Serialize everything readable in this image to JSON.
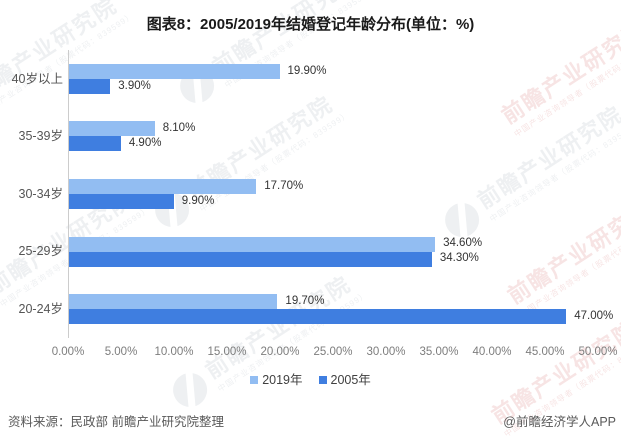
{
  "title": "图表8：2005/2019年结婚登记年龄分布(单位：%)",
  "chart_data": {
    "type": "bar",
    "orientation": "horizontal",
    "title": "图表8：2005/2019年结婚登记年龄分布(单位：%)",
    "unit": "%",
    "categories": [
      "40岁以上",
      "35-39岁",
      "30-34岁",
      "25-29岁",
      "20-24岁"
    ],
    "series": [
      {
        "name": "2019年",
        "color": "#92BDF2",
        "values": [
          19.9,
          8.1,
          17.7,
          34.6,
          19.7
        ],
        "labels": [
          "19.90%",
          "8.10%",
          "17.70%",
          "34.60%",
          "19.70%"
        ]
      },
      {
        "name": "2005年",
        "color": "#3F7EE0",
        "values": [
          3.9,
          4.9,
          9.9,
          34.3,
          47.0
        ],
        "labels": [
          "3.90%",
          "4.90%",
          "9.90%",
          "34.30%",
          "47.00%"
        ]
      }
    ],
    "xlim": [
      0,
      50
    ],
    "x_ticks": [
      "0.00%",
      "5.00%",
      "10.00%",
      "15.00%",
      "20.00%",
      "25.00%",
      "30.00%",
      "35.00%",
      "40.00%",
      "45.00%",
      "50.00%"
    ],
    "xlabel": "",
    "ylabel": "",
    "grid": false,
    "legend_position": "bottom",
    "axis_line_color": "#cccccc"
  },
  "legend": [
    {
      "label": "2019年",
      "color": "#92BDF2"
    },
    {
      "label": "2005年",
      "color": "#3F7EE0"
    }
  ],
  "footer": {
    "source": "资料来源：民政部 前瞻产业研究院整理",
    "credit": "@前瞻经济学人APP"
  },
  "watermark": {
    "brand": "前瞻产业研究院",
    "tagline": "中国产业咨询领导者（股票代码：839599）"
  }
}
